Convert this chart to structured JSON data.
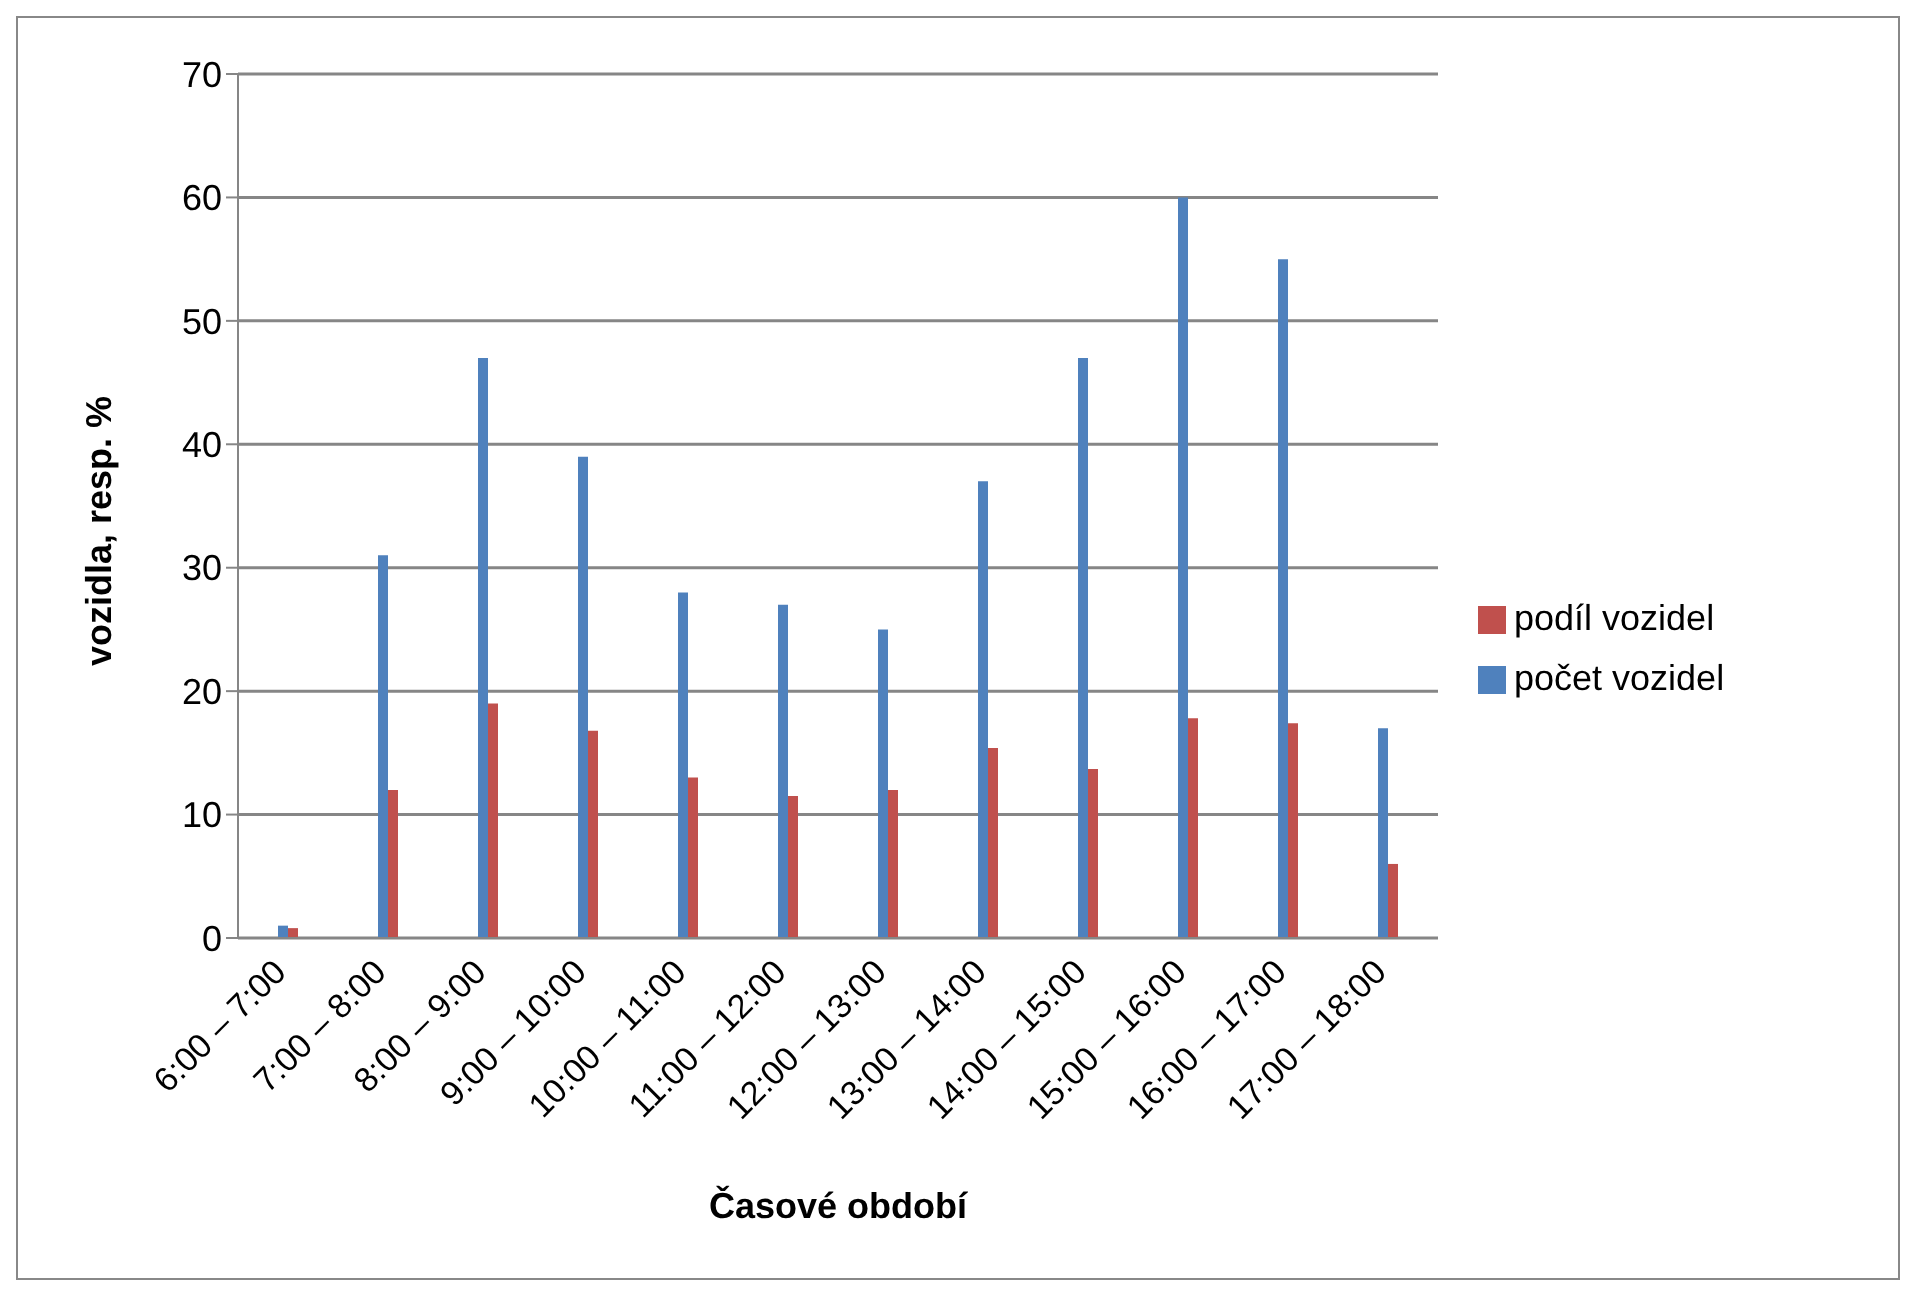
{
  "chart_data": {
    "type": "bar",
    "xlabel": "Časové období",
    "ylabel": "vozidla, resp. %",
    "categories": [
      "6:00 – 7:00",
      "7:00 – 8:00",
      "8:00 – 9:00",
      "9:00 – 10:00",
      "10:00 – 11:00",
      "11:00 – 12:00",
      "12:00 – 13:00",
      "13:00 – 14:00",
      "14:00 – 15:00",
      "15:00 – 16:00",
      "16:00 – 17:00",
      "17:00 – 18:00"
    ],
    "series": [
      {
        "name": "počet vozidel",
        "color": "#4f81bd",
        "values": [
          1,
          31,
          47,
          39,
          28,
          27,
          25,
          37,
          47,
          60,
          55,
          17
        ]
      },
      {
        "name": "podíl vozidel",
        "color": "#c0504d",
        "values": [
          0.8,
          12,
          19,
          16.8,
          13,
          11.5,
          12,
          15.4,
          13.7,
          17.8,
          17.4,
          6
        ]
      }
    ],
    "ylim": [
      0,
      70
    ],
    "yticks": [
      0,
      10,
      20,
      30,
      40,
      50,
      60,
      70
    ],
    "grid": "y",
    "legend": "right"
  }
}
